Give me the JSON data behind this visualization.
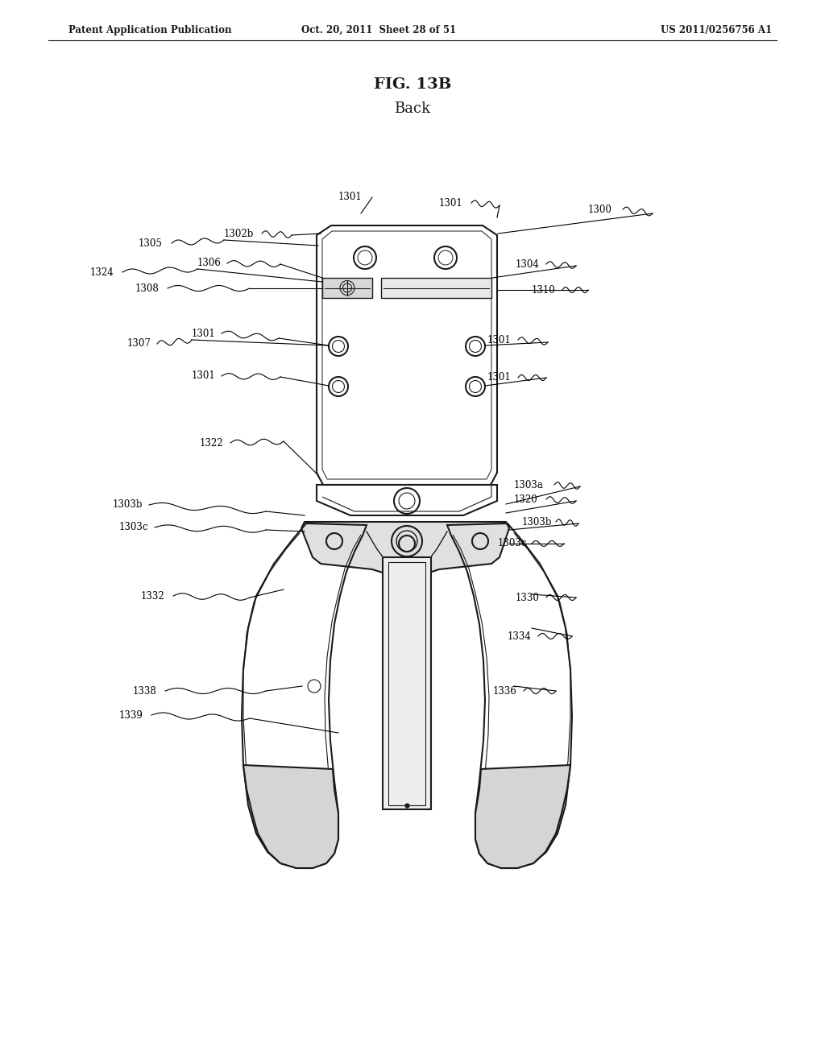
{
  "title": "FIG. 13B",
  "subtitle": "Back",
  "header_left": "Patent Application Publication",
  "header_center": "Oct. 20, 2011  Sheet 28 of 51",
  "header_right": "US 2011/0256756 A1",
  "bg_color": "#ffffff",
  "line_color": "#1a1a1a",
  "text_color": "#000000",
  "label_fontsize": 8.5,
  "title_fontsize": 14,
  "subtitle_fontsize": 13
}
